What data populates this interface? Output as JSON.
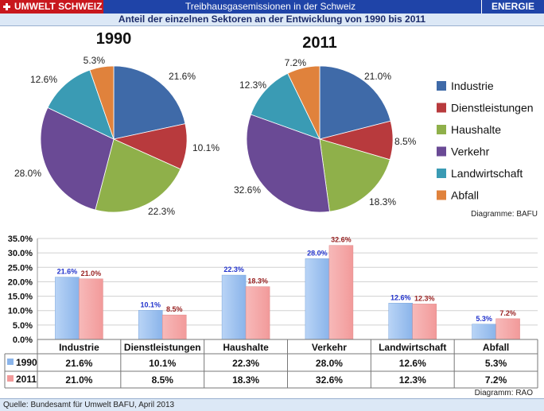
{
  "header": {
    "brand": "UMWELT SCHWEIZ",
    "title": "Treibhausgasemissionen in der Schweiz",
    "section": "ENERGIE",
    "subtitle": "Anteil der einzelnen Sektoren an der Entwicklung von 1990 bis 2011"
  },
  "footer": {
    "source": "Quelle: Bundesamt für Umwelt BAFU, April 2013"
  },
  "colors": {
    "sectors": [
      "#3f6aa8",
      "#b83a3d",
      "#8fb04a",
      "#6a4a95",
      "#3a9bb4",
      "#e0823c"
    ],
    "bar1990": "#8ab4ea",
    "bar2011": "#f29a9a",
    "label1990": "#2233cc",
    "label2011": "#992222"
  },
  "chart_data": [
    {
      "type": "pie",
      "title": "1990",
      "categories": [
        "Industrie",
        "Dienstleistungen",
        "Haushalte",
        "Verkehr",
        "Landwirtschaft",
        "Abfall"
      ],
      "values": [
        21.6,
        10.1,
        22.3,
        28.0,
        12.6,
        5.3
      ],
      "labels": [
        "21.6%",
        "10.1%",
        "22.3%",
        "28.0%",
        "12.6%",
        "5.3%"
      ]
    },
    {
      "type": "pie",
      "title": "2011",
      "categories": [
        "Industrie",
        "Dienstleistungen",
        "Haushalte",
        "Verkehr",
        "Landwirtschaft",
        "Abfall"
      ],
      "values": [
        21.0,
        8.5,
        18.3,
        32.6,
        12.3,
        7.2
      ],
      "labels": [
        "21.0%",
        "8.5%",
        "18.3%",
        "32.6%",
        "12.3%",
        "7.2%"
      ],
      "legend": [
        "Industrie",
        "Dienstleistungen",
        "Haushalte",
        "Verkehr",
        "Landwirtschaft",
        "Abfall"
      ],
      "legend_position": "right",
      "note": "Diagramme: BAFU"
    },
    {
      "type": "bar",
      "categories": [
        "Industrie",
        "Dienstleistungen",
        "Haushalte",
        "Verkehr",
        "Landwirtschaft",
        "Abfall"
      ],
      "series": [
        {
          "name": "1990",
          "values": [
            21.6,
            10.1,
            22.3,
            28.0,
            12.6,
            5.3
          ],
          "labels": [
            "21.6%",
            "10.1%",
            "22.3%",
            "28.0%",
            "12.6%",
            "5.3%"
          ]
        },
        {
          "name": "2011",
          "values": [
            21.0,
            8.5,
            18.3,
            32.6,
            12.3,
            7.2
          ],
          "labels": [
            "21.0%",
            "8.5%",
            "18.3%",
            "32.6%",
            "12.3%",
            "7.2%"
          ]
        }
      ],
      "yticks": [
        "0.0%",
        "5.0%",
        "10.0%",
        "15.0%",
        "20.0%",
        "25.0%",
        "30.0%",
        "35.0%"
      ],
      "ylim": [
        0,
        35
      ],
      "grid": true,
      "legend_position": "data-table",
      "note": "Diagramm: RAO"
    }
  ]
}
